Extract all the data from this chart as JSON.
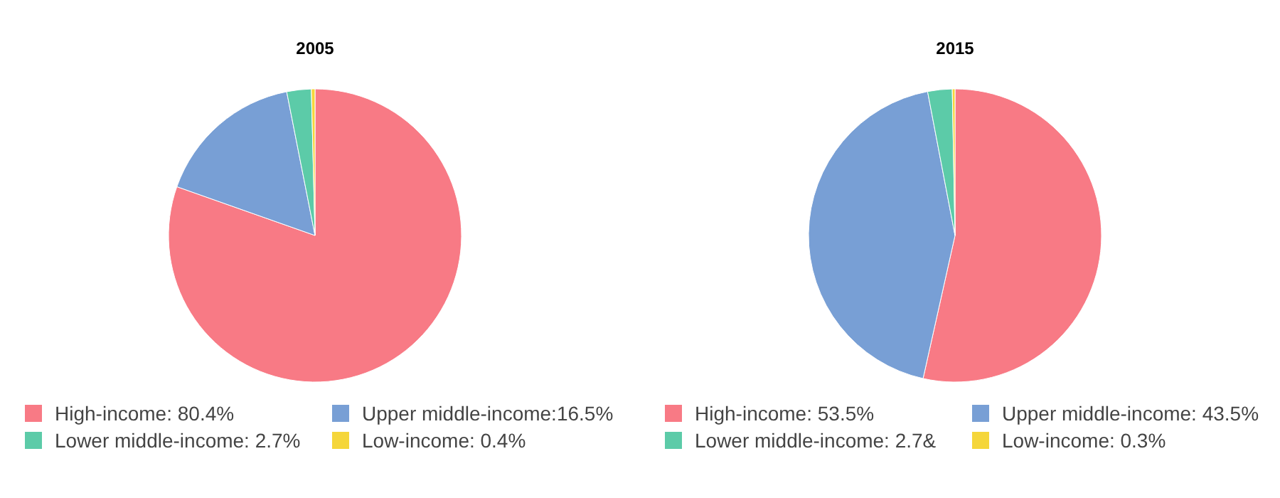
{
  "chart_data": [
    {
      "type": "pie",
      "title": "2005",
      "categories": [
        "High-income: 80.4%",
        "Upper middle-income:16.5%",
        "Lower middle-income: 2.7%",
        "Low-income: 0.4%"
      ],
      "values": [
        80.4,
        16.5,
        2.7,
        0.4
      ],
      "colors": [
        "#f87a85",
        "#789fd5",
        "#5ccba8",
        "#f5d63a"
      ],
      "legend": "bottom"
    },
    {
      "type": "pie",
      "title": "2015",
      "categories": [
        "High-income: 53.5%",
        "Upper middle-income: 43.5%",
        "Lower middle-income: 2.7&",
        "Low-income: 0.3%"
      ],
      "values": [
        53.5,
        43.5,
        2.7,
        0.3
      ],
      "colors": [
        "#f87a85",
        "#789fd5",
        "#5ccba8",
        "#f5d63a"
      ],
      "legend": "bottom"
    }
  ]
}
